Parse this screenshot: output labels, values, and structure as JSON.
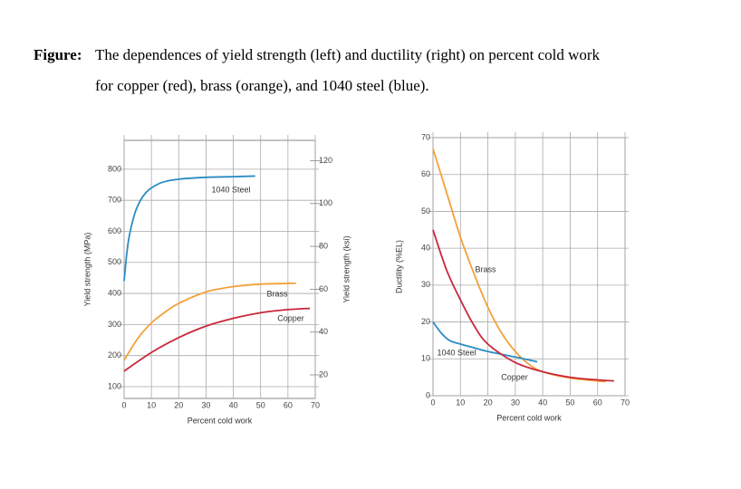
{
  "caption": {
    "label": "Figure:",
    "lines": [
      "The dependences of yield strength (left) and ductility (right) on percent cold work",
      "for copper (red), brass (orange), and 1040 steel (blue)."
    ]
  },
  "chart_data": [
    {
      "type": "line",
      "x_label": "Percent cold work",
      "y_label": "Yield strength (MPa)",
      "y2_label": "Yield strength (ksi)",
      "xlim": [
        0,
        70
      ],
      "xticks": [
        0,
        10,
        20,
        30,
        40,
        50,
        60,
        70
      ],
      "ylim": [
        62,
        893
      ],
      "yticks": [
        100,
        200,
        300,
        400,
        500,
        600,
        700,
        800
      ],
      "y2lim": [
        9,
        129.5
      ],
      "y2ticks": [
        20,
        40,
        60,
        80,
        100,
        120
      ],
      "grid": true,
      "series": [
        {
          "name": "1040 Steel",
          "color": "#2b8cc4",
          "x": [
            0,
            1,
            2,
            4,
            6,
            8,
            10,
            14,
            20,
            30,
            40,
            48
          ],
          "values": [
            440,
            530,
            590,
            660,
            700,
            725,
            740,
            758,
            768,
            774,
            776,
            778
          ]
        },
        {
          "name": "Brass",
          "color": "#f5a03a",
          "x": [
            0,
            5,
            10,
            15,
            20,
            30,
            40,
            50,
            63
          ],
          "values": [
            185,
            255,
            305,
            340,
            368,
            405,
            422,
            430,
            433
          ]
        },
        {
          "name": "Copper",
          "color": "#c9283a",
          "x": [
            0,
            10,
            20,
            30,
            40,
            50,
            60,
            68
          ],
          "values": [
            150,
            210,
            258,
            295,
            320,
            338,
            348,
            352
          ]
        }
      ]
    },
    {
      "type": "line",
      "x_label": "Percent cold work",
      "y_label": "Ductility (%EL)",
      "xlim": [
        0,
        70
      ],
      "xticks": [
        0,
        10,
        20,
        30,
        40,
        50,
        60,
        70
      ],
      "ylim": [
        0,
        70
      ],
      "yticks": [
        0,
        10,
        20,
        30,
        40,
        50,
        60,
        70
      ],
      "grid": true,
      "series": [
        {
          "name": "Brass",
          "color": "#f5a03a",
          "x": [
            0,
            5,
            10,
            15,
            20,
            25,
            30,
            35,
            40,
            50,
            60,
            63
          ],
          "values": [
            67,
            55,
            43,
            33,
            24,
            17,
            12,
            8.5,
            6.5,
            4.8,
            4.0,
            3.8
          ]
        },
        {
          "name": "1040 Steel",
          "color": "#2b8cc4",
          "x": [
            0,
            3,
            6,
            10,
            15,
            20,
            30,
            38
          ],
          "values": [
            20,
            17,
            15,
            14,
            13,
            12,
            10.5,
            9.2
          ]
        },
        {
          "name": "Copper",
          "color": "#c9283a",
          "x": [
            0,
            5,
            10,
            15,
            20,
            30,
            40,
            50,
            60,
            66
          ],
          "values": [
            45,
            34,
            26,
            19,
            14,
            9,
            6.5,
            5,
            4.3,
            4.0
          ]
        }
      ]
    }
  ]
}
